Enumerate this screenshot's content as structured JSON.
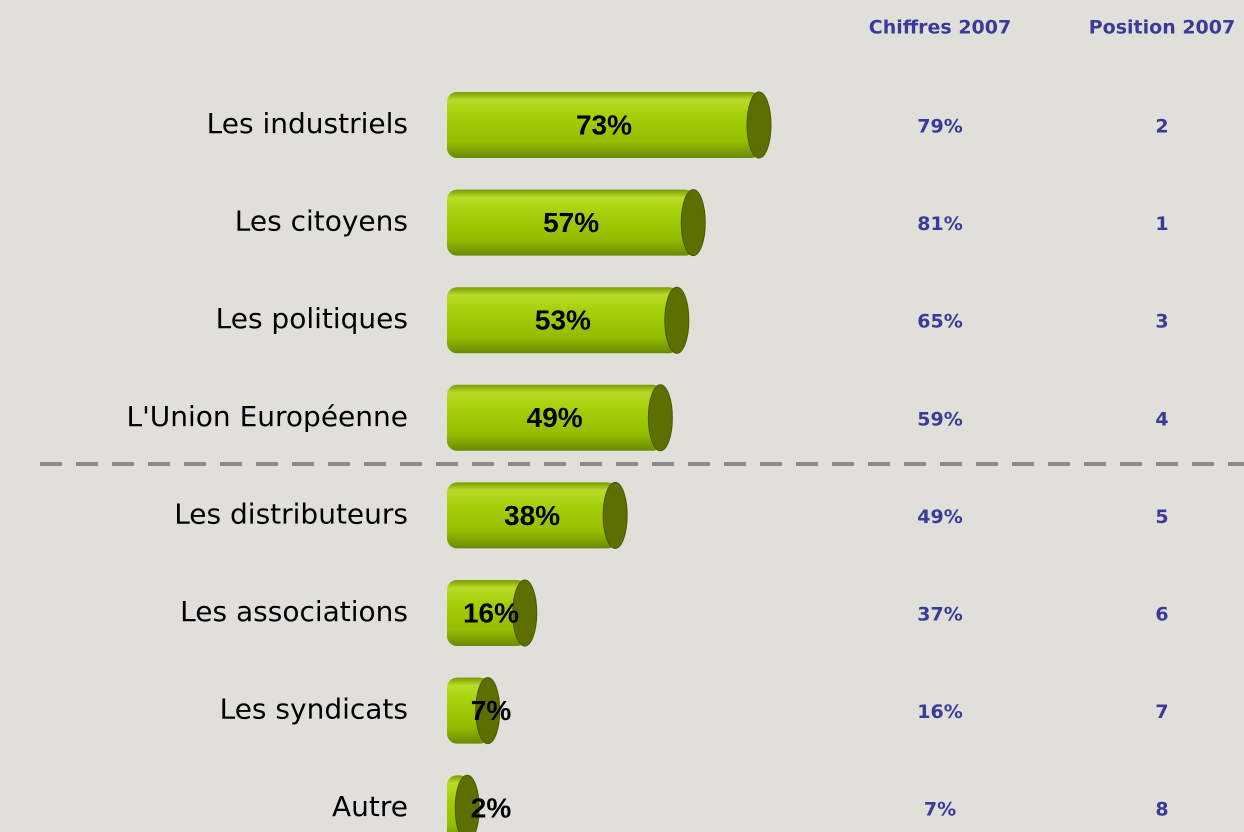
{
  "chart_data": {
    "type": "bar",
    "categories": [
      "Les industriels",
      "Les citoyens",
      "Les politiques",
      "L'Union Européenne",
      "Les distributeurs",
      "Les associations",
      "Les syndicats",
      "Autre"
    ],
    "values": [
      73,
      57,
      53,
      49,
      38,
      16,
      7,
      2
    ],
    "value_labels": [
      "73%",
      "57%",
      "53%",
      "49%",
      "38%",
      "16%",
      "7%",
      "2%"
    ],
    "color": "#9cc400",
    "columns": [
      {
        "name": "Chiffres 2007",
        "values": [
          79,
          81,
          65,
          59,
          49,
          37,
          16,
          7
        ],
        "value_labels": [
          "79%",
          "81%",
          "65%",
          "59%",
          "49%",
          "37%",
          "16%",
          "7%"
        ]
      },
      {
        "name": "Position 2007",
        "values": [
          2,
          1,
          3,
          4,
          5,
          6,
          7,
          8
        ]
      }
    ]
  }
}
